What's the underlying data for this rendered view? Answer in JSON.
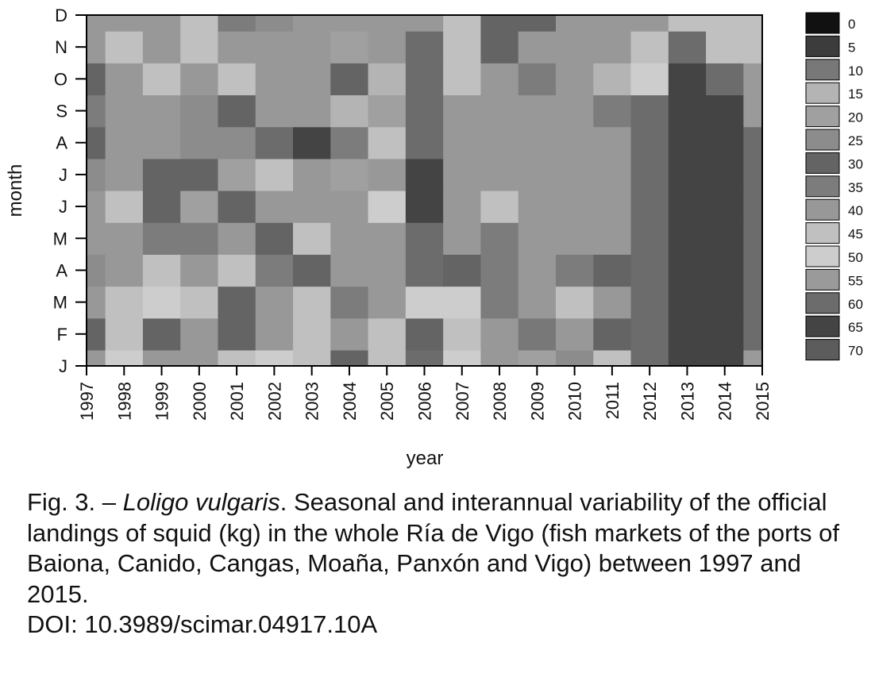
{
  "chart_data": {
    "type": "heatmap",
    "title": "",
    "xlabel": "year",
    "ylabel": "month",
    "x": [
      1997,
      1998,
      1999,
      2000,
      2001,
      2002,
      2003,
      2004,
      2005,
      2006,
      2007,
      2008,
      2009,
      2010,
      2011,
      2012,
      2013,
      2014,
      2015
    ],
    "xlim": [
      1997,
      2015
    ],
    "y_labels": [
      "J",
      "F",
      "M",
      "A",
      "M",
      "J",
      "J",
      "A",
      "S",
      "O",
      "N",
      "D"
    ],
    "legend_position": "right",
    "legend_levels": [
      "0",
      "5",
      "10",
      "15",
      "20",
      "25",
      "30",
      "35",
      "40",
      "45",
      "50",
      "55",
      "60",
      "65",
      "70"
    ],
    "legend_colors": [
      "#111111",
      "#3c3c3c",
      "#787878",
      "#b4b4b4",
      "#a0a0a0",
      "#8c8c8c",
      "#646464",
      "#7c7c7c",
      "#989898",
      "#c0c0c0",
      "#cdcdcd",
      "#9a9a9a",
      "#6c6c6c",
      "#444444",
      "#5c5c5c"
    ],
    "z": [
      [
        40,
        50,
        40,
        40,
        45,
        50,
        45,
        30,
        45,
        60,
        50,
        40,
        20,
        25,
        45,
        60,
        65,
        65,
        55
      ],
      [
        30,
        45,
        30,
        40,
        30,
        40,
        45,
        40,
        45,
        30,
        45,
        40,
        10,
        40,
        30,
        60,
        65,
        65,
        60
      ],
      [
        40,
        45,
        50,
        45,
        30,
        40,
        45,
        35,
        40,
        50,
        50,
        35,
        40,
        45,
        40,
        60,
        65,
        65,
        60
      ],
      [
        25,
        40,
        45,
        40,
        45,
        35,
        30,
        40,
        40,
        60,
        30,
        35,
        40,
        35,
        30,
        60,
        65,
        65,
        60
      ],
      [
        40,
        40,
        35,
        35,
        40,
        30,
        45,
        40,
        40,
        60,
        40,
        35,
        40,
        40,
        40,
        60,
        65,
        65,
        60
      ],
      [
        40,
        45,
        30,
        20,
        30,
        40,
        40,
        40,
        50,
        65,
        40,
        45,
        40,
        40,
        40,
        60,
        65,
        65,
        60
      ],
      [
        25,
        40,
        30,
        30,
        20,
        45,
        40,
        20,
        40,
        65,
        40,
        40,
        40,
        40,
        40,
        60,
        65,
        65,
        60
      ],
      [
        30,
        40,
        40,
        25,
        25,
        60,
        65,
        35,
        45,
        60,
        40,
        40,
        40,
        40,
        40,
        60,
        65,
        65,
        60
      ],
      [
        35,
        40,
        40,
        25,
        30,
        40,
        40,
        15,
        20,
        60,
        40,
        40,
        40,
        40,
        35,
        60,
        65,
        65,
        55
      ],
      [
        30,
        40,
        45,
        40,
        45,
        40,
        40,
        30,
        15,
        60,
        45,
        40,
        35,
        40,
        15,
        50,
        65,
        60,
        55
      ],
      [
        40,
        45,
        40,
        45,
        40,
        40,
        40,
        20,
        40,
        60,
        45,
        30,
        40,
        40,
        40,
        45,
        60,
        45,
        45
      ],
      [
        40,
        40,
        40,
        45,
        35,
        25,
        40,
        40,
        40,
        40,
        45,
        30,
        30,
        40,
        40,
        40,
        45,
        45,
        45
      ]
    ]
  },
  "caption": {
    "fig_label": "Fig. 3. – ",
    "species": "Loligo vulgaris",
    "text": ". Seasonal and interannual variability of the official landings of squid (kg) in the whole Ría de Vigo (fish markets of the ports of Baiona, Canido, Cangas, Moaña, Panxón and Vigo) between 1997 and 2015.",
    "doi": "DOI: 10.3989/scimar.04917.10A"
  }
}
